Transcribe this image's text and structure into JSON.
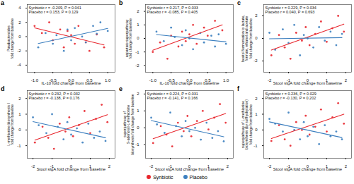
{
  "chart_data": [
    {
      "type": "scatter",
      "panel": "a",
      "x_label": "IL-10 fold change from baseline",
      "y_label": "Parabacteroides\nfold change from baseline",
      "annotations": [
        "Synbiotic r = -0.209, P = 0.041",
        "Placebo r = 0.153, P = 0.129"
      ],
      "xlim": [
        -1.2,
        1.2
      ],
      "xticks": [
        {
          "value": -1,
          "label": "-1.0"
        },
        {
          "value": -0.5,
          "label": "-0.5"
        },
        {
          "value": 0,
          "label": "0.0"
        },
        {
          "value": 0.5,
          "label": "0.5"
        },
        {
          "value": 1,
          "label": "1.0"
        }
      ],
      "ylim": [
        -5,
        4.5
      ],
      "yticks": [
        -4,
        -2,
        0,
        2,
        4
      ],
      "grid": false,
      "series": [
        {
          "name": "Synbiotic",
          "color": "#e8262d",
          "x": [
            -1.0,
            -0.8,
            -0.6,
            -0.5,
            -0.3,
            -0.2,
            -0.1,
            0.0,
            0.1,
            0.2,
            0.4,
            0.5,
            0.7,
            0.9
          ],
          "y": [
            1.5,
            0.5,
            2.0,
            -0.5,
            1.0,
            -1.5,
            0.8,
            0.2,
            -1.0,
            1.5,
            -0.8,
            -2.0,
            0.3,
            -1.5
          ]
        },
        {
          "name": "Placebo",
          "color": "#3c7fbf",
          "x": [
            -0.9,
            -0.7,
            -0.5,
            -0.4,
            -0.2,
            -0.1,
            0.0,
            0.1,
            0.3,
            0.4,
            0.6,
            0.7,
            0.8,
            1.0
          ],
          "y": [
            -1.5,
            0.5,
            -1.0,
            0.2,
            -2.0,
            1.0,
            -0.5,
            1.2,
            0.0,
            -0.8,
            1.5,
            0.4,
            2.0,
            0.8
          ]
        }
      ]
    },
    {
      "type": "scatter",
      "panel": "b",
      "x_label": "IL-10 fold change from baseline",
      "y_label": "aspartate superpathway\nfold change from baseline",
      "annotations": [
        "Synbiotic r = 0.217, P = 0.033",
        "Placebo r = -0.085, P = 0.405"
      ],
      "xlim": [
        -1.2,
        1.2
      ],
      "xticks": [
        {
          "value": -1,
          "label": "-1.0"
        },
        {
          "value": -0.5,
          "label": "-0.5"
        },
        {
          "value": 0,
          "label": "0.0"
        },
        {
          "value": 0.5,
          "label": "0.5"
        },
        {
          "value": 1,
          "label": "1.0"
        }
      ],
      "ylim": [
        -2.5,
        2.5
      ],
      "yticks": [
        -2,
        -1,
        0,
        1,
        2
      ],
      "grid": false,
      "series": [
        {
          "name": "Synbiotic",
          "color": "#e8262d",
          "x": [
            -1.0,
            -0.8,
            -0.6,
            -0.5,
            -0.3,
            -0.2,
            -0.1,
            0.0,
            0.1,
            0.2,
            0.4,
            0.5,
            0.7,
            0.9
          ],
          "y": [
            -1.0,
            -0.3,
            -1.5,
            0.2,
            -0.6,
            0.5,
            -0.2,
            0.3,
            1.0,
            -0.4,
            0.8,
            0.2,
            1.3,
            0.6
          ]
        },
        {
          "name": "Placebo",
          "color": "#3c7fbf",
          "x": [
            -0.9,
            -0.7,
            -0.5,
            -0.4,
            -0.2,
            -0.1,
            0.0,
            0.1,
            0.3,
            0.4,
            0.6,
            0.7,
            0.8,
            1.0
          ],
          "y": [
            0.5,
            -0.2,
            0.8,
            0.1,
            -0.5,
            0.6,
            0.0,
            -0.8,
            0.4,
            -0.3,
            0.2,
            -0.6,
            0.3,
            -0.4
          ]
        }
      ]
    },
    {
      "type": "scatter",
      "panel": "c",
      "x_label": "Stool sIgA fold change from baseline",
      "y_label": "hexitol fermentation to lactate,\nformate, ethanol and acetate\nfold change from baseline",
      "annotations": [
        "Synbiotic r = 0.229, P = 0.034",
        "Placebo r = 0.040, P = 0.693"
      ],
      "xlim": [
        -2.3,
        2.3
      ],
      "xticks": [
        -2,
        -1,
        0,
        1,
        2
      ],
      "ylim": [
        -3,
        3
      ],
      "yticks": [
        -2,
        0,
        2
      ],
      "grid": false,
      "series": [
        {
          "name": "Synbiotic",
          "color": "#e8262d",
          "x": [
            -1.9,
            -1.5,
            -1.2,
            -0.9,
            -0.6,
            -0.3,
            -0.1,
            0.1,
            0.4,
            0.7,
            1.0,
            1.3,
            1.6,
            1.9
          ],
          "y": [
            -1.5,
            0.3,
            -0.8,
            -1.8,
            0.5,
            -0.2,
            1.0,
            -0.6,
            0.4,
            1.5,
            -0.3,
            0.9,
            2.0,
            0.6
          ]
        },
        {
          "name": "Placebo",
          "color": "#3c7fbf",
          "x": [
            -2.0,
            -1.7,
            -1.3,
            -1.0,
            -0.7,
            -0.4,
            -0.2,
            0.0,
            0.3,
            0.6,
            0.9,
            1.2,
            1.5,
            1.8
          ],
          "y": [
            0.5,
            -1.0,
            0.8,
            -0.4,
            1.2,
            -1.5,
            0.3,
            0.0,
            -0.8,
            1.0,
            -0.2,
            0.6,
            -0.6,
            0.4
          ]
        }
      ]
    },
    {
      "type": "scatter",
      "panel": "d",
      "x_label": "Stool sIgA fold change from baseline",
      "y_label": "L-methionine biosynthesis I\nfold change from baseline",
      "annotations": [
        "Synbiotic r = 0.232, P = 0.032",
        "Placebo r = -0.138, P = 0.176"
      ],
      "xlim": [
        -2.3,
        2.3
      ],
      "xticks": [
        -2,
        -1,
        0,
        1,
        2
      ],
      "ylim": [
        -1.8,
        2.5
      ],
      "yticks": [
        -1,
        0,
        1,
        2
      ],
      "grid": false,
      "series": [
        {
          "name": "Synbiotic",
          "color": "#e8262d",
          "x": [
            -1.9,
            -1.5,
            -1.2,
            -0.9,
            -0.6,
            -0.3,
            -0.1,
            0.1,
            0.4,
            0.7,
            1.0,
            1.3,
            1.6,
            1.9
          ],
          "y": [
            -0.8,
            0.2,
            -0.5,
            -1.2,
            0.4,
            -0.1,
            0.8,
            -0.4,
            0.3,
            1.2,
            -0.2,
            0.7,
            1.6,
            0.5
          ]
        },
        {
          "name": "Placebo",
          "color": "#3c7fbf",
          "x": [
            -2.0,
            -1.7,
            -1.3,
            -1.0,
            -0.7,
            -0.4,
            -0.2,
            0.0,
            0.3,
            0.6,
            0.9,
            1.2,
            1.5,
            1.8
          ],
          "y": [
            0.8,
            0.3,
            -0.2,
            1.0,
            0.2,
            -0.6,
            0.5,
            -0.3,
            0.1,
            -0.8,
            0.4,
            -0.5,
            -0.1,
            -0.7
          ]
        }
      ]
    },
    {
      "type": "scatter",
      "panel": "e",
      "x_label": "Stool sIgA fold change from baseline",
      "y_label": "superpathway of\nS-adenosyl-L-methionine\nbiosynthesis fold change from baseline",
      "annotations": [
        "Synbiotic r = 0.224, P = 0.031",
        "Placebo r = -0.141, P = 0.166"
      ],
      "xlim": [
        -2.3,
        2.3
      ],
      "xticks": [
        -2,
        -1,
        0,
        1,
        2
      ],
      "ylim": [
        -1.8,
        2.2
      ],
      "yticks": [
        -1,
        0,
        1,
        2
      ],
      "grid": false,
      "series": [
        {
          "name": "Synbiotic",
          "color": "#e8262d",
          "x": [
            -1.9,
            -1.5,
            -1.2,
            -0.9,
            -0.6,
            -0.3,
            -0.1,
            0.1,
            0.4,
            0.7,
            1.0,
            1.3,
            1.6,
            1.9
          ],
          "y": [
            -0.9,
            0.1,
            -0.4,
            -1.1,
            0.3,
            -0.2,
            0.7,
            -0.5,
            0.4,
            1.0,
            -0.1,
            0.6,
            1.4,
            0.3
          ]
        },
        {
          "name": "Placebo",
          "color": "#3c7fbf",
          "x": [
            -2.0,
            -1.7,
            -1.3,
            -1.0,
            -0.7,
            -0.4,
            -0.2,
            0.0,
            0.3,
            0.6,
            0.9,
            1.2,
            1.5,
            1.8
          ],
          "y": [
            0.6,
            0.2,
            -0.3,
            0.9,
            0.1,
            -0.5,
            0.4,
            -0.2,
            0.0,
            -0.7,
            0.3,
            -0.6,
            -0.2,
            -0.8
          ]
        }
      ]
    },
    {
      "type": "scatter",
      "panel": "f",
      "x_label": "Stool sIgA fold change from baseline",
      "y_label": "superpathway of L-methionine\nbiosynthesis (by sulfhydrylation)\nfold change from baseline",
      "annotations": [
        "Synbiotic r = 0.236, P = 0.029",
        "Placebo r = -0.130, P = 0.202"
      ],
      "xlim": [
        -2.3,
        2.3
      ],
      "xticks": [
        -2,
        -1,
        0,
        1,
        2
      ],
      "ylim": [
        -1.8,
        2.5
      ],
      "yticks": [
        -1,
        0,
        1,
        2
      ],
      "grid": false,
      "series": [
        {
          "name": "Synbiotic",
          "color": "#e8262d",
          "x": [
            -1.9,
            -1.5,
            -1.2,
            -0.9,
            -0.6,
            -0.3,
            -0.1,
            0.1,
            0.4,
            0.7,
            1.0,
            1.3,
            1.6,
            1.9
          ],
          "y": [
            -0.7,
            0.3,
            -0.6,
            -1.0,
            0.5,
            0.0,
            0.9,
            -0.3,
            0.2,
            1.3,
            -0.1,
            0.8,
            1.7,
            0.4
          ]
        },
        {
          "name": "Placebo",
          "color": "#3c7fbf",
          "x": [
            -2.0,
            -1.7,
            -1.3,
            -1.0,
            -0.7,
            -0.4,
            -0.2,
            0.0,
            0.3,
            0.6,
            0.9,
            1.2,
            1.5,
            1.8
          ],
          "y": [
            0.7,
            0.4,
            -0.1,
            1.1,
            0.0,
            -0.6,
            0.5,
            -0.4,
            0.2,
            -0.9,
            0.3,
            -0.4,
            -0.1,
            -0.6
          ]
        }
      ]
    }
  ]
}
